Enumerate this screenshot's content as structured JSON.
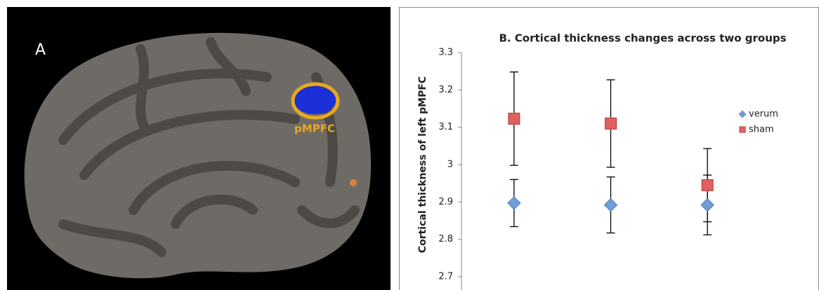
{
  "panel_a": {
    "label": "A",
    "annotation": "pMPFC"
  },
  "chart_data": {
    "type": "errorbar-scatter",
    "title": "B. Cortical thickness changes across two groups",
    "y_label": "Cortical thickness of left pMPFC",
    "categories": [
      null,
      null,
      null
    ],
    "series": [
      {
        "name": "verum",
        "color": "#6f9fd8",
        "marker": "diamond",
        "values": [
          2.897,
          2.892,
          2.892
        ],
        "errors": [
          0.063,
          0.075,
          0.08
        ]
      },
      {
        "name": "sham",
        "color": "#e0605e",
        "marker": "square",
        "values": [
          3.123,
          3.11,
          2.945
        ],
        "errors": [
          0.125,
          0.117,
          0.098
        ]
      }
    ],
    "ylim": [
      2.7,
      3.3
    ],
    "yticks": [
      2.7,
      2.8,
      2.9,
      3,
      3.1,
      3.2,
      3.3
    ],
    "grid": false,
    "legend": "right"
  }
}
